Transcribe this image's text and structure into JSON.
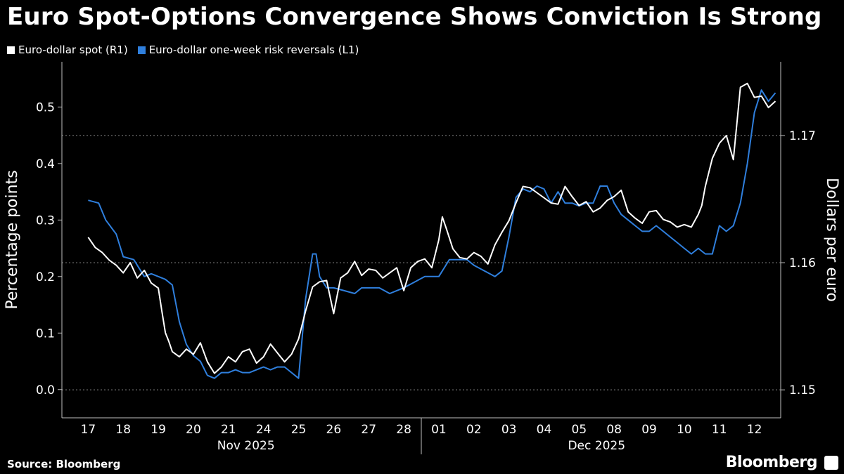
{
  "header": {
    "title": "Euro Spot-Options Convergence Shows Conviction Is Strong"
  },
  "footer": {
    "source": "Source: Bloomberg",
    "brand": "Bloomberg"
  },
  "chart_data": {
    "type": "line",
    "title": "Euro Spot-Options Convergence Shows Conviction Is Strong",
    "left_axis": {
      "label": "Percentage points",
      "ylim": [
        -0.05,
        0.58
      ],
      "ticks": [
        0.0,
        0.1,
        0.2,
        0.3,
        0.4,
        0.5
      ],
      "tick_labels": [
        "0.0",
        "0.1",
        "0.2",
        "0.3",
        "0.4",
        "0.5"
      ]
    },
    "right_axis": {
      "label": "Dollars per euro",
      "ylim": [
        1.1478,
        1.1758
      ],
      "ticks": [
        1.15,
        1.16,
        1.17
      ],
      "tick_labels": [
        "1.15",
        "1.16",
        "1.17"
      ]
    },
    "x_categories": [
      "17",
      "18",
      "19",
      "20",
      "21",
      "24",
      "25",
      "26",
      "27",
      "28",
      "01",
      "02",
      "03",
      "04",
      "05",
      "08",
      "09",
      "10",
      "11",
      "12"
    ],
    "x_groups": [
      {
        "label": "Nov 2025",
        "start": 0,
        "end": 9
      },
      {
        "label": "Dec 2025",
        "start": 10,
        "end": 19
      }
    ],
    "grid": "dotted horizontal at right-axis ticks",
    "legend_position": "top-left",
    "series": [
      {
        "name": "Euro-dollar spot (R1)",
        "axis": "right",
        "color": "#ffffff",
        "x": [
          0,
          0.2,
          0.4,
          0.6,
          0.8,
          1.0,
          1.2,
          1.4,
          1.6,
          1.8,
          2.0,
          2.1,
          2.2,
          2.3,
          2.4,
          2.6,
          2.8,
          3.0,
          3.2,
          3.4,
          3.6,
          3.8,
          4.0,
          4.2,
          4.4,
          4.6,
          4.8,
          5.0,
          5.2,
          5.4,
          5.6,
          5.8,
          6.0,
          6.2,
          6.4,
          6.6,
          6.8,
          7.0,
          7.2,
          7.4,
          7.6,
          7.8,
          8.0,
          8.2,
          8.4,
          8.6,
          8.8,
          9.0,
          9.2,
          9.4,
          9.6,
          9.8,
          10.0,
          10.1,
          10.2,
          10.4,
          10.6,
          10.8,
          11.0,
          11.2,
          11.4,
          11.6,
          11.8,
          12.0,
          12.2,
          12.4,
          12.6,
          12.8,
          13.0,
          13.2,
          13.4,
          13.6,
          13.8,
          14.0,
          14.2,
          14.4,
          14.6,
          14.8,
          15.0,
          15.2,
          15.4,
          15.6,
          15.8,
          16.0,
          16.2,
          16.4,
          16.6,
          16.8,
          17.0,
          17.2,
          17.4,
          17.5,
          17.6,
          17.8,
          18.0,
          18.2,
          18.4,
          18.6,
          18.8,
          19.0,
          19.2,
          19.4,
          19.6
        ],
        "values": [
          1.162,
          1.1612,
          1.1608,
          1.1602,
          1.1598,
          1.1592,
          1.16,
          1.1588,
          1.1594,
          1.1584,
          1.158,
          1.1562,
          1.1545,
          1.1538,
          1.153,
          1.1526,
          1.1532,
          1.1528,
          1.1537,
          1.1522,
          1.1513,
          1.1518,
          1.1526,
          1.1522,
          1.153,
          1.1532,
          1.1521,
          1.1526,
          1.1536,
          1.1529,
          1.1522,
          1.1528,
          1.154,
          1.1562,
          1.1581,
          1.1585,
          1.1586,
          1.156,
          1.1588,
          1.1592,
          1.1601,
          1.159,
          1.1595,
          1.1594,
          1.1588,
          1.1592,
          1.1596,
          1.1578,
          1.1596,
          1.1601,
          1.1603,
          1.1596,
          1.1618,
          1.1636,
          1.1628,
          1.1611,
          1.1604,
          1.1603,
          1.1608,
          1.1605,
          1.1599,
          1.1614,
          1.1624,
          1.1633,
          1.1647,
          1.166,
          1.1659,
          1.1655,
          1.1651,
          1.1647,
          1.1646,
          1.166,
          1.1652,
          1.1645,
          1.1648,
          1.164,
          1.1643,
          1.1649,
          1.1652,
          1.1657,
          1.164,
          1.1635,
          1.1631,
          1.164,
          1.1641,
          1.1634,
          1.1632,
          1.1628,
          1.163,
          1.1628,
          1.1638,
          1.1645,
          1.166,
          1.1682,
          1.1694,
          1.17,
          1.1681,
          1.1738,
          1.1741,
          1.173,
          1.1731,
          1.1722,
          1.1727
        ]
      },
      {
        "name": "Euro-dollar one-week risk reversals (L1)",
        "axis": "left",
        "color": "#2f7fdd",
        "x": [
          0,
          0.3,
          0.5,
          0.8,
          1.0,
          1.3,
          1.6,
          1.8,
          2.0,
          2.2,
          2.4,
          2.6,
          2.8,
          3.0,
          3.2,
          3.4,
          3.6,
          3.8,
          4.0,
          4.2,
          4.4,
          4.6,
          4.8,
          5.0,
          5.2,
          5.4,
          5.6,
          5.8,
          6.0,
          6.2,
          6.4,
          6.5,
          6.6,
          6.8,
          7.0,
          7.3,
          7.6,
          7.8,
          8.0,
          8.3,
          8.6,
          8.8,
          9.0,
          9.3,
          9.6,
          9.8,
          10.0,
          10.3,
          10.6,
          10.8,
          11.0,
          11.3,
          11.6,
          11.8,
          12.0,
          12.2,
          12.4,
          12.6,
          12.8,
          13.0,
          13.2,
          13.4,
          13.6,
          13.8,
          14.0,
          14.2,
          14.4,
          14.6,
          14.8,
          15.0,
          15.2,
          15.4,
          15.6,
          15.8,
          16.0,
          16.2,
          16.4,
          16.6,
          16.8,
          17.0,
          17.2,
          17.4,
          17.6,
          17.8,
          18.0,
          18.2,
          18.4,
          18.6,
          18.8,
          19.0,
          19.2,
          19.4,
          19.6
        ],
        "values": [
          0.335,
          0.33,
          0.3,
          0.275,
          0.235,
          0.23,
          0.2,
          0.205,
          0.2,
          0.195,
          0.185,
          0.12,
          0.08,
          0.06,
          0.05,
          0.025,
          0.02,
          0.03,
          0.03,
          0.035,
          0.03,
          0.03,
          0.035,
          0.04,
          0.035,
          0.04,
          0.04,
          0.03,
          0.02,
          0.16,
          0.24,
          0.24,
          0.2,
          0.18,
          0.18,
          0.175,
          0.17,
          0.18,
          0.18,
          0.18,
          0.17,
          0.175,
          0.18,
          0.19,
          0.2,
          0.2,
          0.2,
          0.23,
          0.23,
          0.23,
          0.22,
          0.21,
          0.2,
          0.21,
          0.27,
          0.34,
          0.355,
          0.35,
          0.36,
          0.355,
          0.33,
          0.35,
          0.33,
          0.33,
          0.325,
          0.33,
          0.33,
          0.36,
          0.36,
          0.33,
          0.31,
          0.3,
          0.29,
          0.28,
          0.28,
          0.29,
          0.28,
          0.27,
          0.26,
          0.25,
          0.24,
          0.25,
          0.24,
          0.24,
          0.29,
          0.28,
          0.29,
          0.33,
          0.4,
          0.49,
          0.53,
          0.51,
          0.525
        ]
      }
    ]
  }
}
